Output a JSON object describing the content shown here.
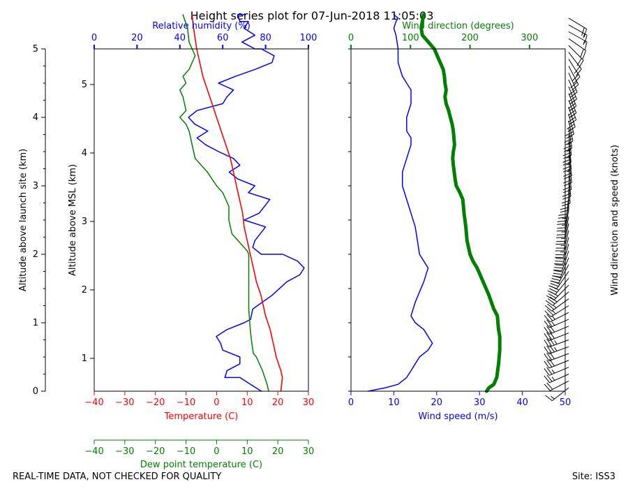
{
  "title": "Height series plot for 07-Jun-2018 11:05:03",
  "footer_left": "REAL-TIME DATA, NOT CHECKED FOR QUALITY",
  "footer_right": "Site: ISS3",
  "colors": {
    "temperature": "#ff0000",
    "dewpoint": "#008000",
    "rh": "#0000ff",
    "wind_speed": "#0000ff",
    "wind_dir": "#008000",
    "barbs": "#000000"
  },
  "chart_data": [
    {
      "type": "line",
      "name": "thermo-panel",
      "axes": {
        "launch_alt": {
          "label": "Altitude above launch site (km)",
          "range": [
            0,
            5
          ],
          "ticks": [
            0,
            1,
            2,
            3,
            4,
            5
          ]
        },
        "msl_alt": {
          "label": "Altitude above MSL (km)",
          "ticks": [
            1,
            2,
            3,
            4,
            5
          ],
          "tick_launch_alt": [
            0.48,
            1.48,
            2.48,
            3.48,
            4.48
          ]
        },
        "temperature": {
          "label": "Temperature (C)",
          "range": [
            -40,
            30
          ],
          "ticks": [
            -40,
            -30,
            -20,
            -10,
            0,
            10,
            20,
            30
          ]
        },
        "dewpoint": {
          "label": "Dew point temperature (C)",
          "range": [
            -40,
            30
          ],
          "ticks": [
            -40,
            -30,
            -20,
            -10,
            0,
            10,
            20,
            30
          ]
        },
        "rh": {
          "label": "Relative humidity (%)",
          "range": [
            0,
            100
          ],
          "ticks": [
            0,
            20,
            40,
            60,
            80,
            100
          ]
        }
      },
      "series": [
        {
          "name": "Temperature",
          "x": [
            21,
            21.5,
            21,
            19.5,
            18.5,
            17.5,
            16,
            14.5,
            13,
            12,
            11,
            10,
            9,
            8.5,
            7.5,
            6.5,
            5.5,
            4.5,
            3,
            1.5,
            0,
            -1.5,
            -3,
            -4.5,
            -5.5,
            -6.5,
            -7.5,
            -8
          ],
          "alt": [
            0,
            0.2,
            0.3,
            0.5,
            0.7,
            0.9,
            1.1,
            1.4,
            1.6,
            1.8,
            2.0,
            2.2,
            2.4,
            2.6,
            2.8,
            3.0,
            3.2,
            3.4,
            3.6,
            3.8,
            4.0,
            4.2,
            4.4,
            4.6,
            4.8,
            5.0,
            5.3,
            5.5
          ]
        },
        {
          "name": "Dew point",
          "x": [
            17,
            16.5,
            15,
            13,
            12,
            11.5,
            11,
            10.5,
            10.5,
            10.5,
            10.5,
            10.5,
            10,
            9,
            7,
            5,
            4,
            4,
            2,
            0,
            -3,
            -5,
            -7,
            -8,
            -9,
            -10,
            -12,
            -10,
            -11,
            -12,
            -10,
            -11,
            -9,
            -8,
            -7,
            -8,
            -9,
            -9.5,
            -11
          ],
          "alt": [
            0,
            0.1,
            0.3,
            0.5,
            0.55,
            0.7,
            0.9,
            1.2,
            1.4,
            1.6,
            1.8,
            2.0,
            2.05,
            2.1,
            2.2,
            2.3,
            2.5,
            2.7,
            2.9,
            3.0,
            3.2,
            3.3,
            3.4,
            3.6,
            3.8,
            3.9,
            4.0,
            4.1,
            4.3,
            4.4,
            4.5,
            4.6,
            4.7,
            4.8,
            4.9,
            5.0,
            5.1,
            5.3,
            5.5
          ]
        },
        {
          "name": "Relative humidity",
          "x": [
            78,
            73,
            68,
            61,
            62,
            68,
            68,
            60,
            59,
            57,
            62,
            70,
            73,
            74,
            83,
            90,
            96,
            98,
            95,
            88,
            78,
            74,
            75,
            80,
            70,
            77,
            82,
            72,
            75,
            67,
            63,
            68,
            65,
            58,
            52,
            48,
            53,
            47,
            44,
            48,
            60,
            62,
            65,
            58,
            66,
            75,
            83,
            84,
            78,
            75,
            69,
            75,
            70,
            72,
            68,
            67,
            70
          ],
          "alt": [
            0,
            0.1,
            0.2,
            0.2,
            0.3,
            0.4,
            0.5,
            0.6,
            0.7,
            0.8,
            0.9,
            1.0,
            1.05,
            1.2,
            1.4,
            1.6,
            1.7,
            1.8,
            1.9,
            2.0,
            2.0,
            2.1,
            2.2,
            2.4,
            2.5,
            2.6,
            2.8,
            2.9,
            3.0,
            3.1,
            3.2,
            3.3,
            3.4,
            3.5,
            3.6,
            3.7,
            3.8,
            3.9,
            4.0,
            4.1,
            4.2,
            4.3,
            4.4,
            4.5,
            4.6,
            4.7,
            4.8,
            4.9,
            5.0,
            5.0,
            5.1,
            5.2,
            5.3,
            5.4,
            5.4,
            5.5,
            5.5
          ]
        }
      ]
    },
    {
      "type": "line",
      "name": "wind-panel",
      "axes": {
        "wind_speed": {
          "label": "Wind speed (m/s)",
          "range": [
            0,
            50
          ],
          "ticks": [
            0,
            10,
            20,
            30,
            40,
            50
          ]
        },
        "wind_dir": {
          "label": "Wind direction (degrees)",
          "range": [
            0,
            360
          ],
          "ticks": [
            0,
            100,
            200,
            300
          ]
        },
        "barbs_label": "Wind direction and speed (knots)"
      },
      "series": [
        {
          "name": "Wind speed",
          "x": [
            4,
            8,
            11,
            13,
            14,
            15,
            16,
            18,
            19,
            17,
            15,
            14,
            15,
            17,
            18,
            17,
            16,
            15.5,
            15,
            14,
            13,
            12,
            12,
            13,
            14,
            14,
            13,
            13,
            14,
            14,
            13,
            12,
            11,
            11,
            10.5,
            10,
            10.5,
            11,
            10
          ],
          "alt": [
            0,
            0.05,
            0.1,
            0.2,
            0.3,
            0.4,
            0.5,
            0.6,
            0.7,
            0.9,
            1.0,
            1.1,
            1.3,
            1.6,
            1.8,
            1.9,
            2.0,
            2.2,
            2.4,
            2.6,
            2.8,
            3.0,
            3.2,
            3.4,
            3.6,
            3.7,
            3.8,
            4.0,
            4.2,
            4.4,
            4.5,
            4.6,
            4.8,
            5.0,
            5.2,
            5.3,
            5.4,
            5.45,
            5.5
          ]
        },
        {
          "name": "Wind direction",
          "x": [
            228,
            232,
            240,
            245,
            248,
            250,
            250,
            248,
            247,
            246,
            240,
            232,
            222,
            212,
            205,
            200,
            195,
            193,
            190,
            188,
            183,
            177,
            175,
            172,
            171,
            172,
            174,
            173,
            172,
            170,
            167,
            164,
            160,
            158,
            160,
            158,
            157,
            155,
            150,
            140,
            130,
            120,
            118,
            122
          ],
          "alt": [
            0,
            0.05,
            0.1,
            0.2,
            0.4,
            0.6,
            0.8,
            0.9,
            1.0,
            1.1,
            1.2,
            1.4,
            1.6,
            1.8,
            1.9,
            2.0,
            2.2,
            2.4,
            2.6,
            2.8,
            2.9,
            3.0,
            3.1,
            3.3,
            3.4,
            3.5,
            3.6,
            3.7,
            3.8,
            3.9,
            4.0,
            4.1,
            4.2,
            4.3,
            4.4,
            4.5,
            4.6,
            4.7,
            4.8,
            5.0,
            5.1,
            5.2,
            5.3,
            5.5
          ]
        }
      ]
    }
  ]
}
